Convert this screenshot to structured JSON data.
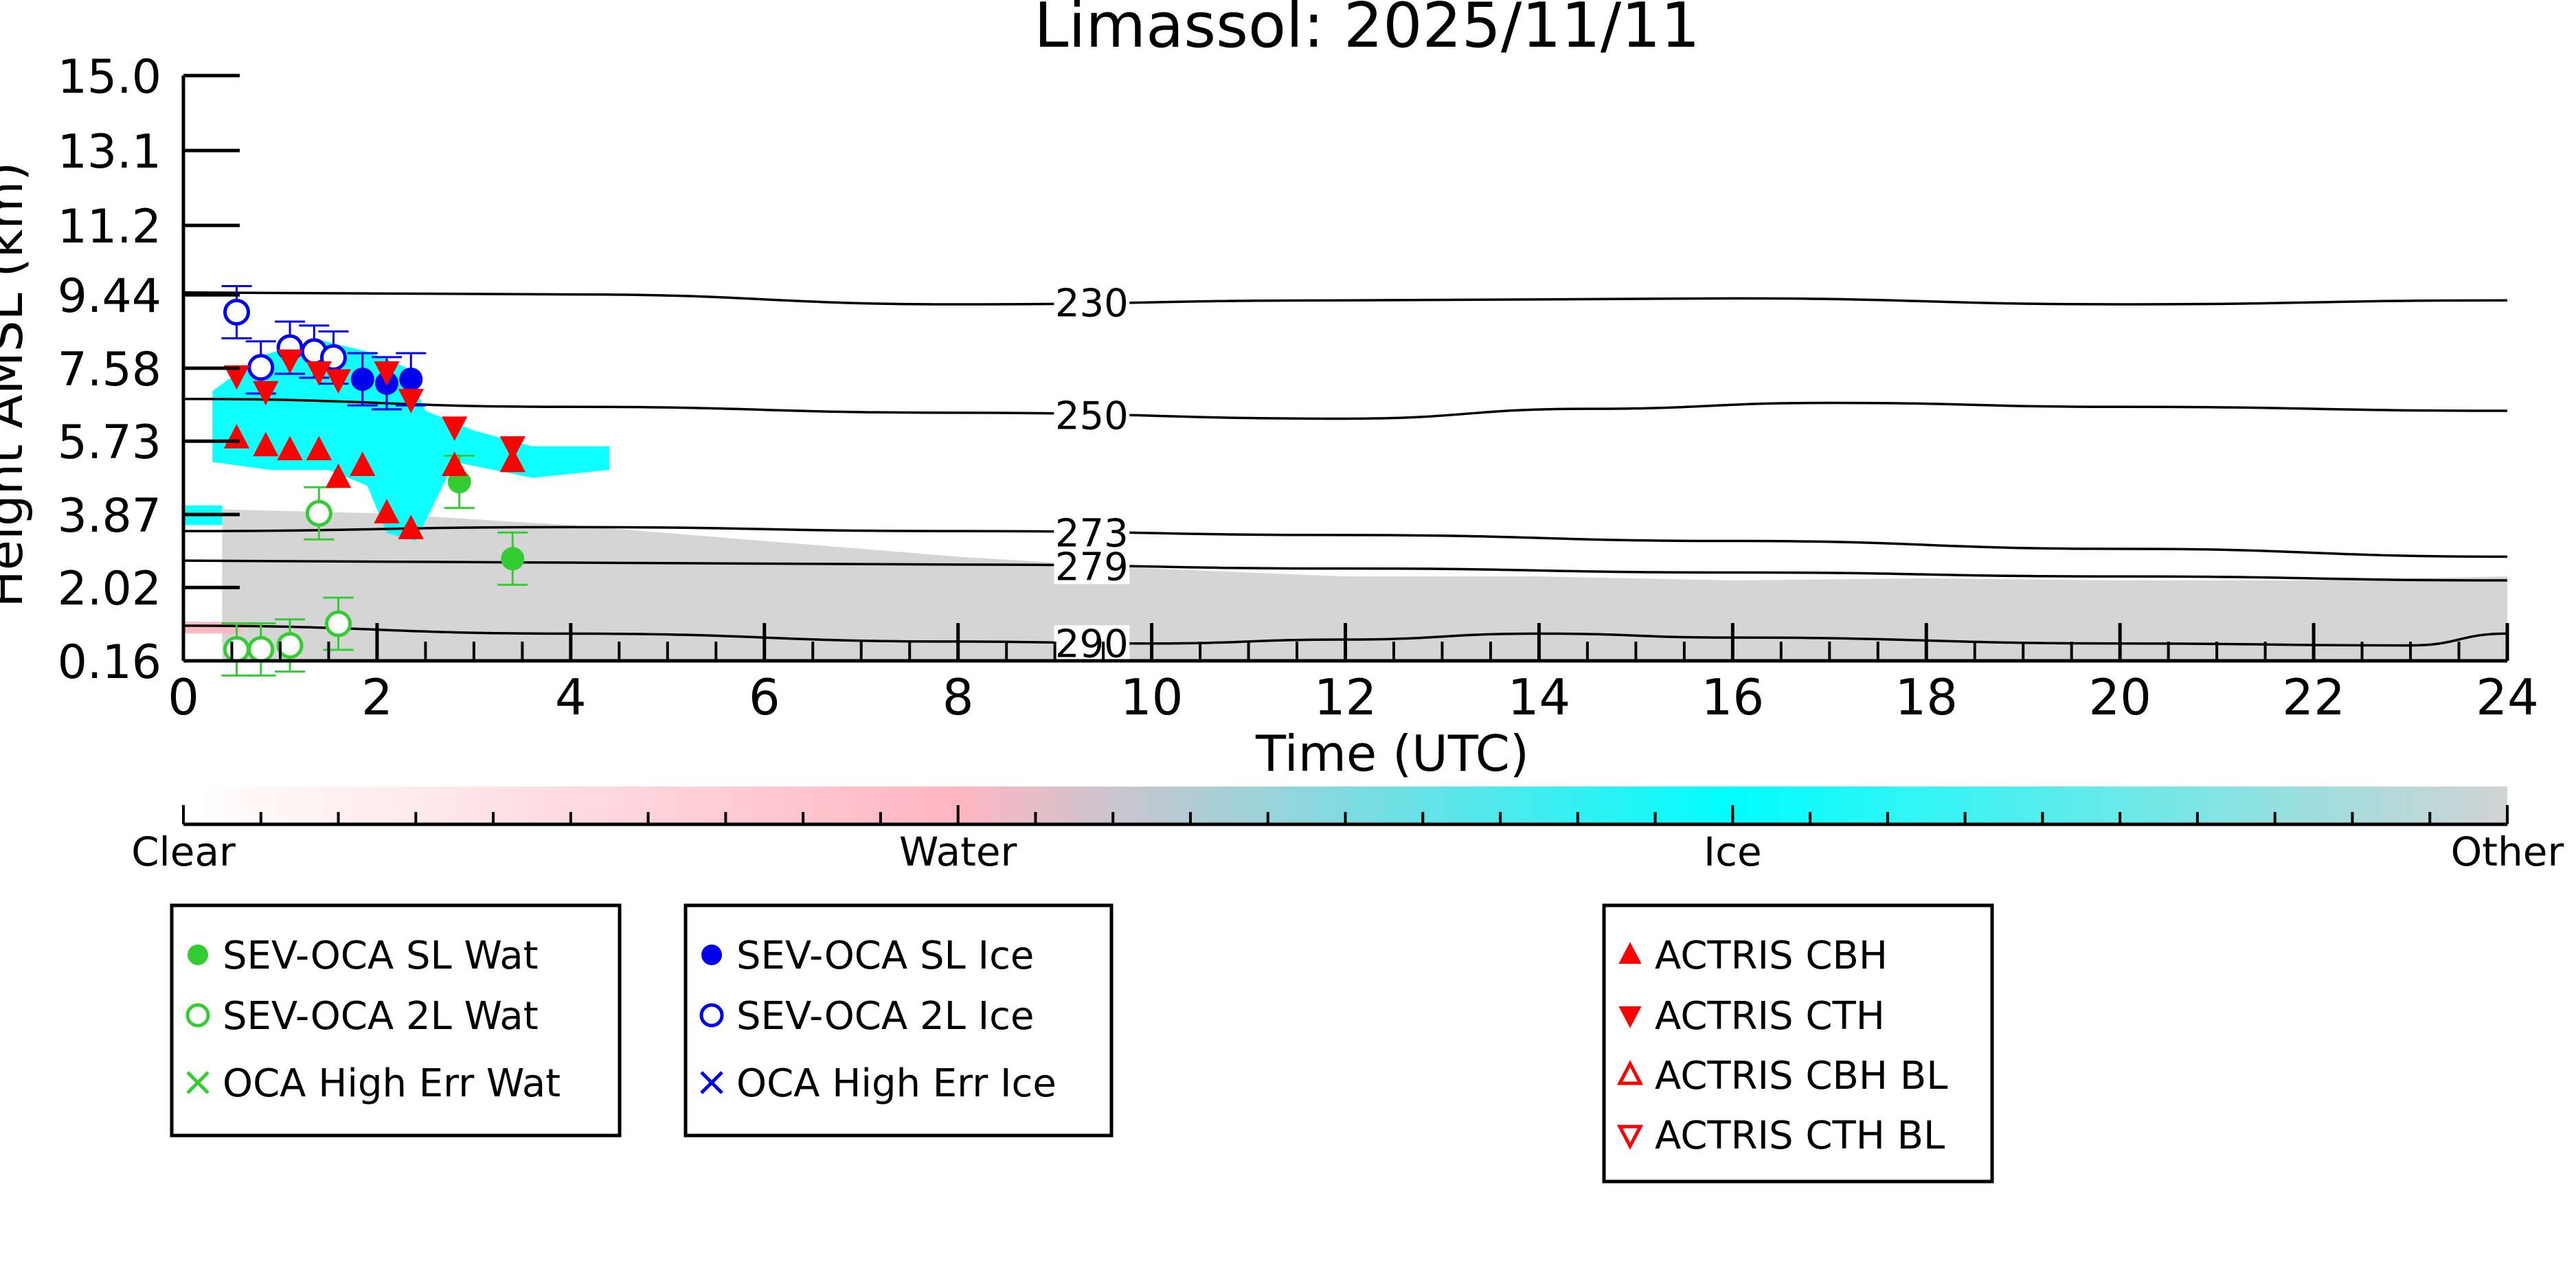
{
  "chart_data": {
    "type": "scatter",
    "title": "Limassol: 2025/11/11",
    "xlabel": "Time (UTC)",
    "ylabel": "Height AMSL (km)",
    "xlim": [
      0,
      24
    ],
    "ylim": [
      0.16,
      15.0
    ],
    "x_ticks": [
      0,
      2,
      4,
      6,
      8,
      10,
      12,
      14,
      16,
      18,
      20,
      22,
      24
    ],
    "y_ticks": [
      0.16,
      2.02,
      3.87,
      5.73,
      7.58,
      9.44,
      11.2,
      13.1,
      15.0
    ],
    "y_tick_labels": [
      "0.16",
      "2.02",
      "3.87",
      "5.73",
      "7.58",
      "9.44",
      "11.2",
      "13.1",
      "15.0"
    ],
    "contours": [
      {
        "label": "230",
        "label_x": 9.7,
        "points": [
          [
            0,
            9.5
          ],
          [
            4,
            9.45
          ],
          [
            8,
            9.2
          ],
          [
            12,
            9.3
          ],
          [
            16,
            9.35
          ],
          [
            20,
            9.2
          ],
          [
            24,
            9.3
          ]
        ]
      },
      {
        "label": "250",
        "label_x": 9.7,
        "points": [
          [
            0,
            6.8
          ],
          [
            4,
            6.6
          ],
          [
            8,
            6.45
          ],
          [
            12,
            6.3
          ],
          [
            14.5,
            6.55
          ],
          [
            17,
            6.7
          ],
          [
            20,
            6.6
          ],
          [
            24,
            6.5
          ]
        ]
      },
      {
        "label": "273",
        "label_x": 9.7,
        "points": [
          [
            0,
            3.45
          ],
          [
            4,
            3.55
          ],
          [
            8,
            3.45
          ],
          [
            12,
            3.35
          ],
          [
            16,
            3.2
          ],
          [
            20,
            3.0
          ],
          [
            24,
            2.8
          ]
        ]
      },
      {
        "label": "279",
        "label_x": 9.7,
        "points": [
          [
            0,
            2.7
          ],
          [
            4,
            2.65
          ],
          [
            8,
            2.6
          ],
          [
            12,
            2.5
          ],
          [
            16,
            2.4
          ],
          [
            20,
            2.3
          ],
          [
            24,
            2.2
          ]
        ]
      },
      {
        "label": "290",
        "label_x": 9.7,
        "points": [
          [
            0,
            1.05
          ],
          [
            4,
            0.85
          ],
          [
            8,
            0.65
          ],
          [
            10,
            0.6
          ],
          [
            12,
            0.7
          ],
          [
            14,
            0.85
          ],
          [
            16,
            0.75
          ],
          [
            20,
            0.6
          ],
          [
            23,
            0.55
          ],
          [
            24,
            0.85
          ]
        ]
      }
    ],
    "series": [
      {
        "name": "SEV-OCA SL Wat",
        "marker": "filled-circle",
        "color": "#33cc33",
        "points": [
          [
            2.85,
            4.7
          ],
          [
            3.4,
            2.75
          ]
        ]
      },
      {
        "name": "SEV-OCA 2L Wat",
        "marker": "open-circle",
        "color": "#33cc33",
        "points": [
          [
            0.55,
            0.45
          ],
          [
            0.8,
            0.45
          ],
          [
            1.1,
            0.55
          ],
          [
            1.4,
            3.9
          ],
          [
            1.6,
            1.1
          ]
        ]
      },
      {
        "name": "OCA High Err Wat",
        "marker": "x",
        "color": "#33cc33",
        "points": []
      },
      {
        "name": "SEV-OCA SL Ice",
        "marker": "filled-circle",
        "color": "#0000ee",
        "points": [
          [
            1.85,
            7.3
          ],
          [
            2.1,
            7.2
          ],
          [
            2.35,
            7.3
          ]
        ]
      },
      {
        "name": "SEV-OCA 2L Ice",
        "marker": "open-circle",
        "color": "#0000ee",
        "points": [
          [
            0.55,
            9.0
          ],
          [
            0.8,
            7.6
          ],
          [
            1.1,
            8.1
          ],
          [
            1.35,
            8.0
          ],
          [
            1.55,
            7.85
          ]
        ]
      },
      {
        "name": "OCA High Err Ice",
        "marker": "x",
        "color": "#0000ee",
        "points": []
      },
      {
        "name": "ACTRIS CBH",
        "marker": "triangle-up",
        "color": "#ff0000",
        "points": [
          [
            0.55,
            5.8
          ],
          [
            0.85,
            5.6
          ],
          [
            1.1,
            5.5
          ],
          [
            1.4,
            5.5
          ],
          [
            1.6,
            4.8
          ],
          [
            1.85,
            5.1
          ],
          [
            2.1,
            3.9
          ],
          [
            2.35,
            3.5
          ],
          [
            2.8,
            5.1
          ],
          [
            3.4,
            5.2
          ]
        ]
      },
      {
        "name": "ACTRIS CTH",
        "marker": "triangle-down",
        "color": "#ff0000",
        "points": [
          [
            0.55,
            7.4
          ],
          [
            0.85,
            7.0
          ],
          [
            1.1,
            7.8
          ],
          [
            1.4,
            7.5
          ],
          [
            1.6,
            7.3
          ],
          [
            2.1,
            7.5
          ],
          [
            2.35,
            6.8
          ],
          [
            2.8,
            6.1
          ],
          [
            3.4,
            5.6
          ]
        ]
      },
      {
        "name": "ACTRIS CBH BL",
        "marker": "open-triangle-up",
        "color": "#ff0000",
        "points": []
      },
      {
        "name": "ACTRIS CTH BL",
        "marker": "open-triangle-down",
        "color": "#ff0000",
        "points": []
      }
    ],
    "colorbar": {
      "labels": [
        "Clear",
        "Water",
        "Ice",
        "Other"
      ],
      "colors": [
        "#ffffff",
        "#ffb6c1",
        "#00ffff",
        "#d3d3d3"
      ]
    },
    "legends": [
      [
        "SEV-OCA SL Wat",
        "SEV-OCA 2L Wat",
        "OCA High Err Wat"
      ],
      [
        "SEV-OCA SL Ice",
        "SEV-OCA 2L Ice",
        "OCA High Err Ice"
      ],
      [
        "ACTRIS CBH",
        "ACTRIS CTH",
        "ACTRIS CBH BL",
        "ACTRIS CTH BL"
      ]
    ],
    "background_colors": {
      "other": "#d3d3d3",
      "ice": "#00ffff",
      "water": "#ffb6c1"
    }
  }
}
